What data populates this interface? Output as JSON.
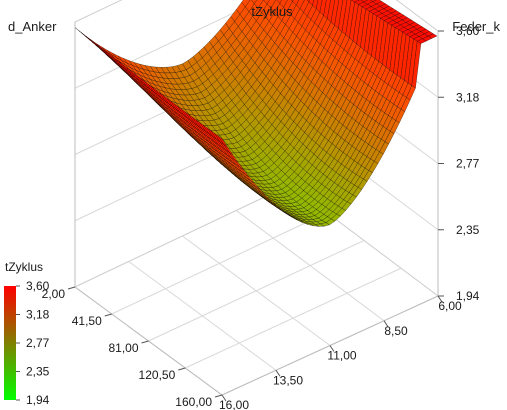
{
  "chart_data": {
    "type": "surface3d",
    "title": "tZyklus",
    "axes": {
      "x": {
        "label": "d_Anker",
        "ticks": [
          "2,00",
          "41,50",
          "81,00",
          "120,50",
          "160,00"
        ],
        "range": [
          2,
          160
        ]
      },
      "y": {
        "label": "Feder_k",
        "ticks": [
          "6,00",
          "8,50",
          "11,00",
          "13,50",
          "16,00"
        ],
        "range": [
          6,
          16
        ]
      },
      "z": {
        "label": "tZyklus",
        "ticks": [
          "1,94",
          "2,35",
          "2,77",
          "3,18",
          "3,60"
        ],
        "range": [
          1.94,
          3.6
        ]
      }
    },
    "colorbar": {
      "title": "tZyklus",
      "ticks": [
        "3,60",
        "3,18",
        "2,77",
        "2,35",
        "1,94"
      ],
      "min": 1.94,
      "max": 3.6,
      "color_low": "#00ff00",
      "color_high": "#ff0000"
    },
    "surface_samples": {
      "description_points": [
        {
          "d_Anker": 2,
          "Feder_k": 6,
          "tZyklus": 3.45
        },
        {
          "d_Anker": 2,
          "Feder_k": 16,
          "tZyklus": 3.55
        },
        {
          "d_Anker": 160,
          "Feder_k": 6,
          "tZyklus": 3.42
        },
        {
          "d_Anker": 160,
          "Feder_k": 16,
          "tZyklus": 3.6
        },
        {
          "d_Anker": 160,
          "Feder_k": 11,
          "tZyklus": 2.0
        },
        {
          "d_Anker": 81,
          "Feder_k": 11,
          "tZyklus": 2.6
        }
      ]
    },
    "grid": true
  }
}
